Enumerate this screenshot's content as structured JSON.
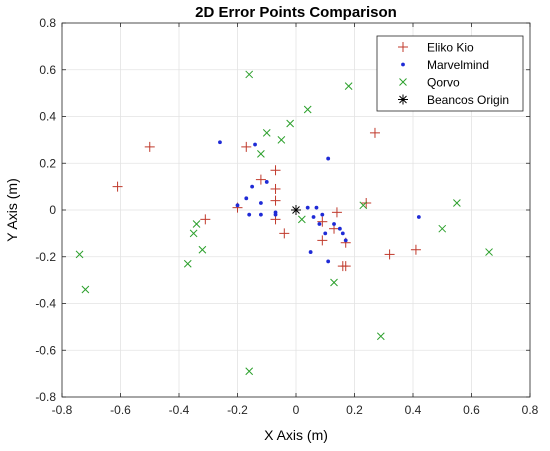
{
  "chart_data": {
    "type": "scatter",
    "title": "2D Error Points Comparison",
    "xlabel": "X Axis (m)",
    "ylabel": "Y Axis (m)",
    "xlim": [
      -0.8,
      0.8
    ],
    "ylim": [
      -0.8,
      0.8
    ],
    "xticks": [
      -0.8,
      -0.6,
      -0.4,
      -0.2,
      0,
      0.2,
      0.4,
      0.6,
      0.8
    ],
    "yticks": [
      -0.8,
      -0.6,
      -0.4,
      -0.2,
      0,
      0.2,
      0.4,
      0.6,
      0.8
    ],
    "xtick_labels": [
      "-0.8",
      "-0.6",
      "-0.4",
      "-0.2",
      "0",
      "0.2",
      "0.4",
      "0.6",
      "0.8"
    ],
    "ytick_labels": [
      "-0.8",
      "-0.6",
      "-0.4",
      "-0.2",
      "0",
      "0.2",
      "0.4",
      "0.6",
      "0.8"
    ],
    "grid": true,
    "legend_position": "top-right",
    "series": [
      {
        "name": "Eliko Kio",
        "marker": "plus",
        "color": "#c0392b",
        "points": [
          [
            -0.61,
            0.1
          ],
          [
            -0.5,
            0.27
          ],
          [
            -0.31,
            -0.04
          ],
          [
            -0.2,
            0.01
          ],
          [
            -0.17,
            0.27
          ],
          [
            -0.12,
            0.13
          ],
          [
            -0.07,
            0.17
          ],
          [
            -0.07,
            0.09
          ],
          [
            -0.07,
            0.04
          ],
          [
            -0.07,
            -0.04
          ],
          [
            -0.04,
            -0.1
          ],
          [
            0.09,
            -0.05
          ],
          [
            0.09,
            -0.13
          ],
          [
            0.13,
            -0.08
          ],
          [
            0.14,
            -0.01
          ],
          [
            0.16,
            -0.24
          ],
          [
            0.17,
            -0.24
          ],
          [
            0.17,
            -0.14
          ],
          [
            0.24,
            0.03
          ],
          [
            0.27,
            0.33
          ],
          [
            0.32,
            -0.19
          ],
          [
            0.41,
            -0.17
          ]
        ]
      },
      {
        "name": "Marvelmind",
        "marker": "dot",
        "color": "#1f2bd6",
        "points": [
          [
            -0.26,
            0.29
          ],
          [
            -0.2,
            0.02
          ],
          [
            -0.17,
            0.05
          ],
          [
            -0.16,
            -0.02
          ],
          [
            -0.15,
            0.1
          ],
          [
            -0.14,
            0.28
          ],
          [
            -0.12,
            0.03
          ],
          [
            -0.12,
            -0.02
          ],
          [
            -0.1,
            0.12
          ],
          [
            -0.07,
            -0.01
          ],
          [
            -0.07,
            -0.02
          ],
          [
            0.04,
            0.01
          ],
          [
            0.05,
            -0.18
          ],
          [
            0.06,
            -0.03
          ],
          [
            0.07,
            0.01
          ],
          [
            0.08,
            -0.06
          ],
          [
            0.09,
            -0.02
          ],
          [
            0.1,
            -0.1
          ],
          [
            0.11,
            0.22
          ],
          [
            0.11,
            -0.22
          ],
          [
            0.13,
            -0.06
          ],
          [
            0.15,
            -0.08
          ],
          [
            0.16,
            -0.1
          ],
          [
            0.17,
            -0.13
          ],
          [
            0.42,
            -0.03
          ]
        ]
      },
      {
        "name": "Qorvo",
        "marker": "cross",
        "color": "#2ca02c",
        "points": [
          [
            -0.74,
            -0.19
          ],
          [
            -0.72,
            -0.34
          ],
          [
            -0.37,
            -0.23
          ],
          [
            -0.35,
            -0.1
          ],
          [
            -0.34,
            -0.06
          ],
          [
            -0.32,
            -0.17
          ],
          [
            -0.16,
            0.58
          ],
          [
            -0.16,
            -0.69
          ],
          [
            -0.12,
            0.24
          ],
          [
            -0.1,
            0.33
          ],
          [
            -0.05,
            0.3
          ],
          [
            -0.02,
            0.37
          ],
          [
            0.02,
            -0.04
          ],
          [
            0.04,
            0.43
          ],
          [
            0.13,
            -0.31
          ],
          [
            0.18,
            0.53
          ],
          [
            0.23,
            0.02
          ],
          [
            0.29,
            -0.54
          ],
          [
            0.5,
            -0.08
          ],
          [
            0.55,
            0.03
          ],
          [
            0.66,
            -0.18
          ]
        ]
      },
      {
        "name": "Beancos Origin",
        "marker": "star",
        "color": "#000000",
        "points": [
          [
            0,
            0
          ]
        ]
      }
    ]
  }
}
